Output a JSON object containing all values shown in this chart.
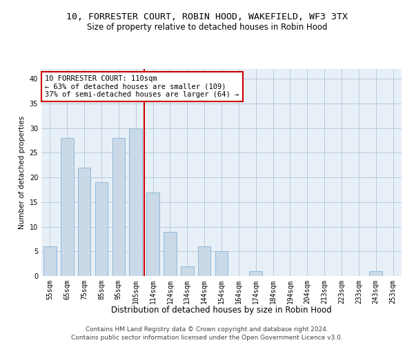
{
  "title": "10, FORRESTER COURT, ROBIN HOOD, WAKEFIELD, WF3 3TX",
  "subtitle": "Size of property relative to detached houses in Robin Hood",
  "xlabel": "Distribution of detached houses by size in Robin Hood",
  "ylabel": "Number of detached properties",
  "footer1": "Contains HM Land Registry data © Crown copyright and database right 2024.",
  "footer2": "Contains public sector information licensed under the Open Government Licence v3.0.",
  "bin_labels": [
    "55sqm",
    "65sqm",
    "75sqm",
    "85sqm",
    "95sqm",
    "105sqm",
    "114sqm",
    "124sqm",
    "134sqm",
    "144sqm",
    "154sqm",
    "164sqm",
    "174sqm",
    "184sqm",
    "194sqm",
    "204sqm",
    "213sqm",
    "223sqm",
    "233sqm",
    "243sqm",
    "253sqm"
  ],
  "bar_values": [
    6,
    28,
    22,
    19,
    28,
    30,
    17,
    9,
    2,
    6,
    5,
    0,
    1,
    0,
    0,
    0,
    0,
    0,
    0,
    1,
    0
  ],
  "bar_color": "#c9d9e8",
  "bar_edgecolor": "#8fb8d8",
  "bar_width": 0.75,
  "vline_x": 5.5,
  "vline_color": "#cc0000",
  "ylim": [
    0,
    42
  ],
  "yticks": [
    0,
    5,
    10,
    15,
    20,
    25,
    30,
    35,
    40
  ],
  "annotation_line1": "10 FORRESTER COURT: 110sqm",
  "annotation_line2": "← 63% of detached houses are smaller (109)",
  "annotation_line3": "37% of semi-detached houses are larger (64) →",
  "annotation_box_color": "#ffffff",
  "annotation_box_edgecolor": "#cc0000",
  "annotation_fontsize": 7.5,
  "title_fontsize": 9.5,
  "subtitle_fontsize": 8.5,
  "xlabel_fontsize": 8.5,
  "ylabel_fontsize": 7.5,
  "tick_fontsize": 7,
  "background_color": "#e8f0f7",
  "grid_color": "#b0c4d8",
  "footer_fontsize": 6.5
}
